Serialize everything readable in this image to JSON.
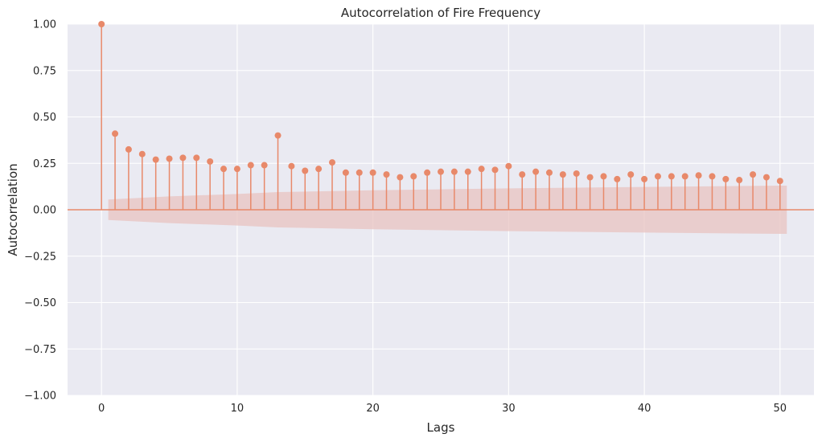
{
  "chart_data": {
    "type": "stem",
    "title": "Autocorrelation of Fire Frequency",
    "xlabel": "Lags",
    "ylabel": "Autocorrelation",
    "xlim": [
      -2.5,
      52.5
    ],
    "ylim": [
      -1.0,
      1.0
    ],
    "x_ticks": [
      0,
      10,
      20,
      30,
      40,
      50
    ],
    "y_ticks": [
      -1.0,
      -0.75,
      -0.5,
      -0.25,
      0.0,
      0.25,
      0.5,
      0.75,
      1.0
    ],
    "y_tick_labels": [
      "−1.00",
      "−0.75",
      "−0.50",
      "−0.25",
      "0.00",
      "0.25",
      "0.50",
      "0.75",
      "1.00"
    ],
    "x_tick_labels": [
      "0",
      "10",
      "20",
      "30",
      "40",
      "50"
    ],
    "grid": true,
    "colors": {
      "background": "#eaeaf2",
      "grid": "#ffffff",
      "stem": "#e8896a",
      "confidence_band": "#e8c3c0"
    },
    "lags": [
      0,
      1,
      2,
      3,
      4,
      5,
      6,
      7,
      8,
      9,
      10,
      11,
      12,
      13,
      14,
      15,
      16,
      17,
      18,
      19,
      20,
      21,
      22,
      23,
      24,
      25,
      26,
      27,
      28,
      29,
      30,
      31,
      32,
      33,
      34,
      35,
      36,
      37,
      38,
      39,
      40,
      41,
      42,
      43,
      44,
      45,
      46,
      47,
      48,
      49,
      50
    ],
    "values": [
      1.0,
      0.41,
      0.325,
      0.3,
      0.27,
      0.275,
      0.28,
      0.28,
      0.26,
      0.22,
      0.22,
      0.24,
      0.24,
      0.4,
      0.235,
      0.21,
      0.22,
      0.255,
      0.2,
      0.2,
      0.2,
      0.19,
      0.175,
      0.18,
      0.2,
      0.205,
      0.205,
      0.205,
      0.22,
      0.215,
      0.235,
      0.19,
      0.205,
      0.2,
      0.19,
      0.195,
      0.175,
      0.18,
      0.165,
      0.19,
      0.165,
      0.18,
      0.18,
      0.18,
      0.185,
      0.18,
      0.165,
      0.16,
      0.19,
      0.175,
      0.155
    ],
    "confidence_band": {
      "lags": [
        0.5,
        5,
        10,
        13,
        20,
        30,
        40,
        50,
        50.5
      ],
      "upper": [
        0.055,
        0.072,
        0.085,
        0.095,
        0.105,
        0.115,
        0.123,
        0.13,
        0.13
      ]
    }
  }
}
